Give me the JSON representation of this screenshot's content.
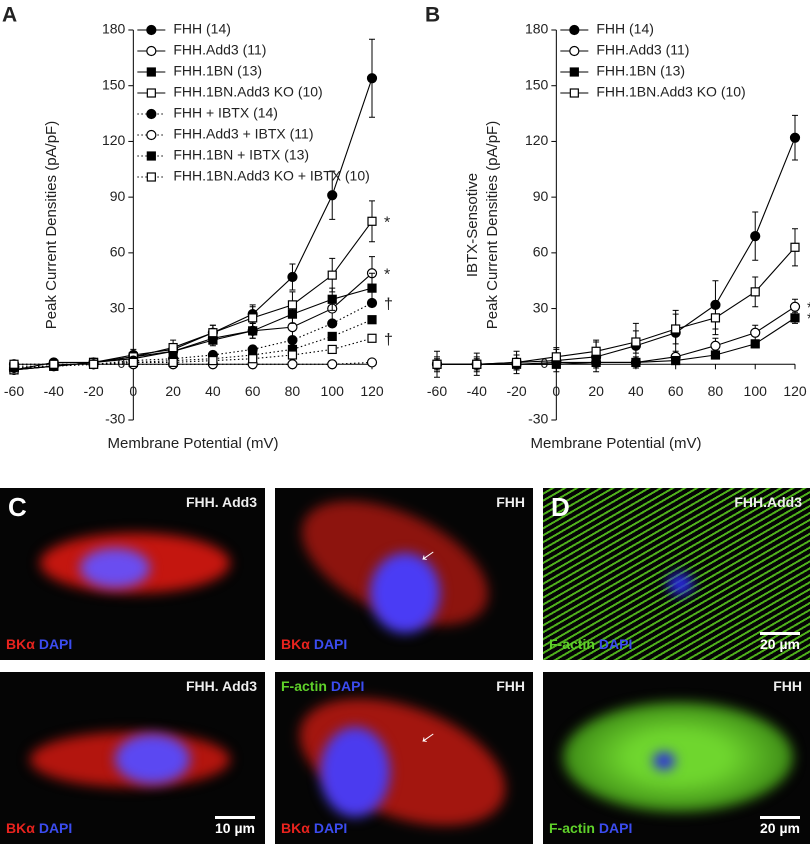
{
  "chart_data": [
    {
      "type": "line",
      "panel_label": "A",
      "ylabel": [
        "Peak Current Densities (pA/pF)"
      ],
      "xlabel": "Membrane Potential (mV)",
      "x": [
        -60,
        -40,
        -20,
        0,
        20,
        40,
        60,
        80,
        100,
        120
      ],
      "xlim": [
        -60,
        120
      ],
      "xticks": [
        -60,
        -40,
        -20,
        0,
        20,
        40,
        60,
        80,
        100,
        120
      ],
      "ylim": [
        -30,
        180
      ],
      "yticks": [
        -30,
        0,
        30,
        60,
        90,
        120,
        150,
        180
      ],
      "legend": "top-left",
      "color": "#000000",
      "series": [
        {
          "name": "FHH (14)",
          "marker": "circle-filled",
          "dash": "solid",
          "values": [
            -3,
            1,
            1,
            5,
            8,
            17,
            27,
            47,
            91,
            154
          ],
          "errors": [
            2,
            2,
            2,
            3,
            3,
            4,
            5,
            7,
            13,
            21
          ]
        },
        {
          "name": "FHH.Add3 (11)",
          "marker": "circle-open",
          "dash": "solid",
          "values": [
            -3,
            -1,
            1,
            4,
            7,
            14,
            18,
            20,
            30,
            49
          ],
          "errors": [
            2,
            2,
            2,
            2,
            3,
            3,
            4,
            5,
            7,
            9
          ],
          "note": "*"
        },
        {
          "name": "FHH.1BN (13)",
          "marker": "square-filled",
          "dash": "solid",
          "values": [
            -3,
            -1,
            1,
            3,
            7,
            13,
            18,
            27,
            35,
            41
          ],
          "errors": [
            2,
            2,
            2,
            2,
            3,
            3,
            4,
            5,
            6,
            8
          ]
        },
        {
          "name": "FHH.1BN.Add3 KO (10)",
          "marker": "square-open",
          "dash": "solid",
          "values": [
            -3,
            -1,
            1,
            4,
            9,
            17,
            25,
            32,
            48,
            77
          ],
          "errors": [
            2,
            2,
            2,
            3,
            4,
            4,
            6,
            7,
            9,
            11
          ],
          "note": "*"
        },
        {
          "name": "FHH + IBTX (14)",
          "marker": "circle-filled",
          "dash": "dotted",
          "values": [
            -2,
            -1,
            0,
            2,
            3,
            5,
            8,
            13,
            22,
            33
          ],
          "note": "†"
        },
        {
          "name": "FHH.Add3 + IBTX (11)",
          "marker": "circle-open",
          "dash": "dotted",
          "values": [
            0,
            0,
            0,
            0,
            0,
            0,
            0,
            0,
            0,
            1
          ]
        },
        {
          "name": "FHH.1BN + IBTX (13)",
          "marker": "square-filled",
          "dash": "dotted",
          "values": [
            -1,
            -1,
            0,
            1,
            2,
            3,
            5,
            8,
            15,
            24
          ]
        },
        {
          "name": "FHH.1BN.Add3 KO + IBTX (10)",
          "marker": "square-open",
          "dash": "dotted",
          "values": [
            0,
            0,
            0,
            1,
            1,
            2,
            3,
            5,
            8,
            14
          ],
          "note": "†"
        }
      ]
    },
    {
      "type": "line",
      "panel_label": "B",
      "ylabel": [
        "IBTX-Sensotive",
        "Peak Current Densities (pA/pF)"
      ],
      "xlabel": "Membrane Potential (mV)",
      "x": [
        -60,
        -40,
        -20,
        0,
        20,
        40,
        60,
        80,
        100,
        120
      ],
      "xlim": [
        -60,
        120
      ],
      "xticks": [
        -60,
        -40,
        -20,
        0,
        20,
        40,
        60,
        80,
        100,
        120
      ],
      "ylim": [
        -30,
        180
      ],
      "yticks": [
        -30,
        0,
        30,
        60,
        90,
        120,
        150,
        180
      ],
      "legend": "top-left",
      "color": "#000000",
      "series": [
        {
          "name": "FHH (14)",
          "marker": "circle-filled",
          "dash": "solid",
          "values": [
            0,
            0,
            1,
            2,
            4,
            10,
            17,
            32,
            69,
            122
          ],
          "errors": [
            7,
            6,
            6,
            6,
            8,
            12,
            12,
            13,
            13,
            12
          ]
        },
        {
          "name": "FHH.Add3 (11)",
          "marker": "circle-open",
          "dash": "solid",
          "values": [
            0,
            0,
            0,
            1,
            1,
            1,
            4,
            10,
            17,
            31
          ],
          "errors": [
            3,
            3,
            3,
            3,
            3,
            3,
            3,
            4,
            4,
            4
          ],
          "note": "*"
        },
        {
          "name": "FHH.1BN (13)",
          "marker": "square-filled",
          "dash": "solid",
          "values": [
            0,
            0,
            0,
            0,
            1,
            1,
            2,
            5,
            11,
            25
          ],
          "errors": [
            2,
            2,
            2,
            2,
            2,
            2,
            2,
            2,
            2,
            3
          ],
          "note": "*"
        },
        {
          "name": "FHH.1BN.Add3 KO (10)",
          "marker": "square-open",
          "dash": "solid",
          "values": [
            0,
            0,
            1,
            4,
            7,
            12,
            19,
            25,
            39,
            63
          ],
          "errors": [
            4,
            4,
            4,
            5,
            6,
            6,
            8,
            9,
            8,
            10
          ]
        }
      ]
    }
  ],
  "image_panel_labels": [
    "C",
    "D"
  ],
  "images": [
    {
      "title": "FHH. Add3",
      "stains": [
        {
          "text": "BKα",
          "color": "#e8231e"
        },
        {
          "text": "DAPI",
          "color": "#3b4cf0"
        }
      ]
    },
    {
      "title": "FHH",
      "stains": [
        {
          "text": "BKα",
          "color": "#e8231e"
        },
        {
          "text": "DAPI",
          "color": "#3b4cf0"
        }
      ]
    },
    {
      "title": "FHH.Add3",
      "stains": [
        {
          "text": "F-actin",
          "color": "#5fd12a"
        },
        {
          "text": "DAPI",
          "color": "#3b4cf0"
        }
      ],
      "scale_bar": "20 µm"
    },
    {
      "title": "FHH. Add3",
      "stains": [
        {
          "text": "BKα",
          "color": "#e8231e"
        },
        {
          "text": "DAPI",
          "color": "#3b4cf0"
        }
      ],
      "scale_bar": "10 µm"
    },
    {
      "title": "FHH",
      "stains": [
        {
          "text": "BKα",
          "color": "#e8231e"
        },
        {
          "text": "DAPI",
          "color": "#3b4cf0"
        }
      ],
      "top_stains": [
        {
          "text": "F-actin",
          "color": "#5fd12a"
        },
        {
          "text": "DAPI",
          "color": "#3b4cf0"
        }
      ]
    },
    {
      "title": "FHH",
      "stains": [
        {
          "text": "F-actin",
          "color": "#5fd12a"
        },
        {
          "text": "DAPI",
          "color": "#3b4cf0"
        }
      ],
      "scale_bar": "20 µm"
    }
  ]
}
